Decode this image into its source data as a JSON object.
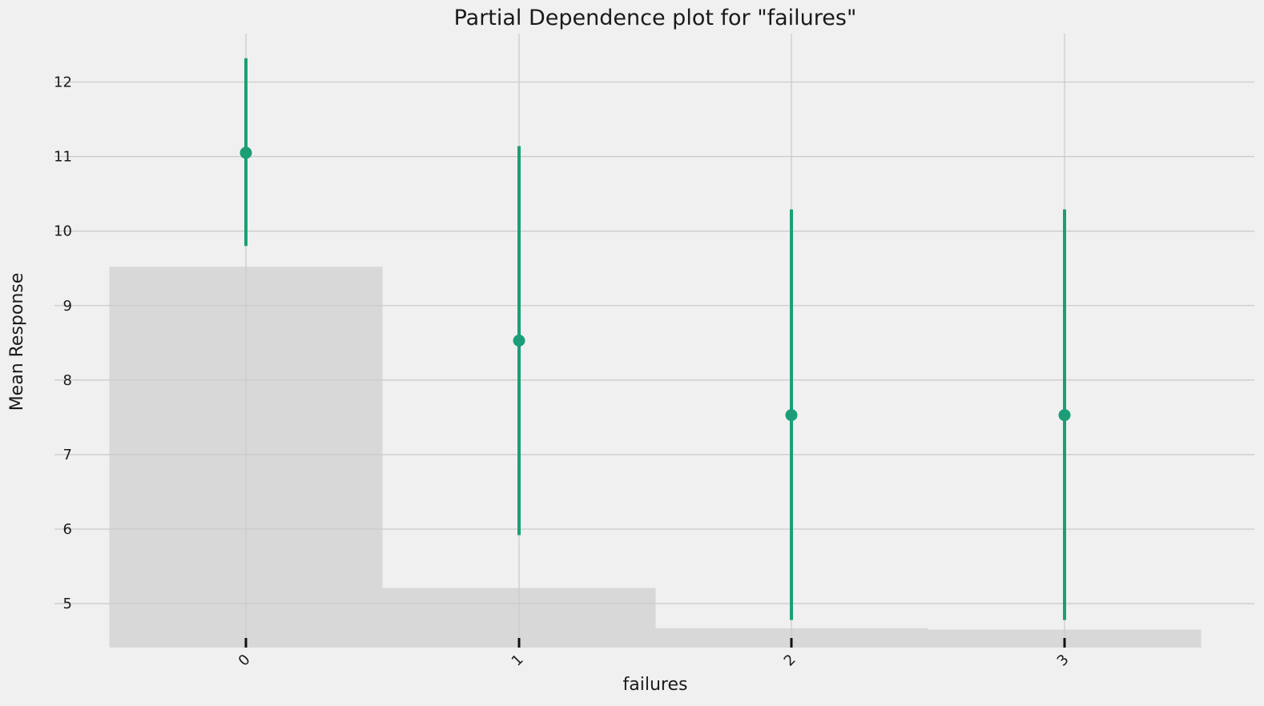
{
  "chart_data": {
    "type": "scatter",
    "title": "Partial Dependence plot for \"failures\"",
    "xlabel": "failures",
    "ylabel": "Mean Response",
    "categories": [
      "0",
      "1",
      "2",
      "3"
    ],
    "series": [
      {
        "values": [
          11.05,
          8.53,
          7.53,
          7.53
        ],
        "lower": [
          9.8,
          5.92,
          4.78,
          4.78
        ],
        "upper": [
          12.32,
          11.14,
          10.29,
          10.29
        ]
      }
    ],
    "histogram": {
      "values": [
        9.52,
        5.21,
        4.67,
        4.65
      ],
      "baseline": 4.41
    },
    "ylim": [
      4.41,
      12.65
    ],
    "yticks": [
      5,
      6,
      7,
      8,
      9,
      10,
      11,
      12
    ],
    "x_tick_rotation": -45,
    "grid": true,
    "legend": "none",
    "colors": {
      "point": "#1b9e77",
      "histogram": "#d8d8d8",
      "grid": "#cbcbcb",
      "background": "#f0f0f0"
    }
  }
}
